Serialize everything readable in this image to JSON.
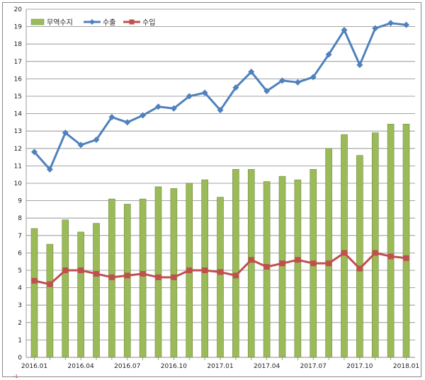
{
  "chart_data": {
    "type": "bar+line",
    "title": "",
    "xlabel": "",
    "ylabel": "",
    "ylim": [
      0,
      20
    ],
    "yticks": [
      0,
      1,
      2,
      3,
      4,
      5,
      6,
      7,
      8,
      9,
      10,
      11,
      12,
      13,
      14,
      15,
      16,
      17,
      18,
      19,
      20
    ],
    "y_extra_label": "-1",
    "categories": [
      "2016.01",
      "2016.02",
      "2016.03",
      "2016.04",
      "2016.05",
      "2016.06",
      "2016.07",
      "2016.08",
      "2016.09",
      "2016.10",
      "2016.11",
      "2016.12",
      "2017.01",
      "2017.02",
      "2017.03",
      "2017.04",
      "2017.05",
      "2017.06",
      "2017.07",
      "2017.08",
      "2017.09",
      "2017.10",
      "2017.11",
      "2017.12",
      "2018.01"
    ],
    "xtick_labels": [
      {
        "index": 0,
        "label": "2016.01"
      },
      {
        "index": 3,
        "label": "2016.04"
      },
      {
        "index": 6,
        "label": "2016.07"
      },
      {
        "index": 9,
        "label": "2016.10"
      },
      {
        "index": 12,
        "label": "2017.01"
      },
      {
        "index": 15,
        "label": "2017.04"
      },
      {
        "index": 18,
        "label": "2017.07"
      },
      {
        "index": 21,
        "label": "2017.10"
      },
      {
        "index": 24,
        "label": "2018.01"
      }
    ],
    "series": [
      {
        "name": "무역수지",
        "type": "bar",
        "color": "#9bbb59",
        "edge": "#71893f",
        "values": [
          7.4,
          6.5,
          7.9,
          7.2,
          7.7,
          9.1,
          8.8,
          9.1,
          9.8,
          9.7,
          10.0,
          10.2,
          9.2,
          10.8,
          10.8,
          10.1,
          10.4,
          10.2,
          10.8,
          12.0,
          12.8,
          11.6,
          12.9,
          13.4,
          13.4
        ]
      },
      {
        "name": "수출",
        "type": "line",
        "color": "#4f81bd",
        "marker": "diamond",
        "values": [
          11.8,
          10.8,
          12.9,
          12.2,
          12.5,
          13.8,
          13.5,
          13.9,
          14.4,
          14.3,
          15.0,
          15.2,
          14.2,
          15.5,
          16.4,
          15.3,
          15.9,
          15.8,
          16.1,
          17.4,
          18.8,
          16.8,
          18.9,
          19.2,
          19.1
        ]
      },
      {
        "name": "수입",
        "type": "line",
        "color": "#c0504d",
        "marker": "square",
        "values": [
          4.4,
          4.2,
          5.0,
          5.0,
          4.8,
          4.6,
          4.7,
          4.8,
          4.6,
          4.6,
          5.0,
          5.0,
          4.9,
          4.7,
          5.6,
          5.2,
          5.4,
          5.6,
          5.4,
          5.4,
          6.0,
          5.1,
          6.0,
          5.8,
          5.7
        ]
      }
    ],
    "legend": "top-left",
    "grid": true
  }
}
